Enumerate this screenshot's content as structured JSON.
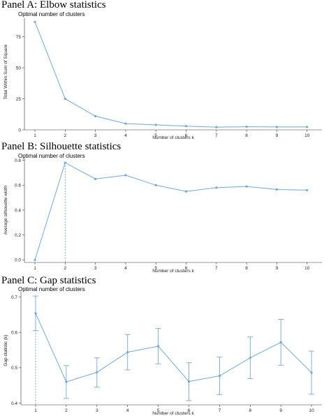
{
  "colors": {
    "series": "#6fa8dc",
    "axis": "#333333",
    "text": "#222222"
  },
  "chart_data": [
    {
      "type": "line",
      "panel_title": "Panel A: Elbow statistics",
      "title": "Optimal number of clusters",
      "xlabel": "Number of clusters k",
      "ylabel": "Total Within Sum of Square",
      "x": [
        1,
        2,
        3,
        4,
        5,
        6,
        7,
        8,
        9,
        10
      ],
      "x_ticks": [
        "1",
        "2",
        "3",
        "4",
        "5",
        "6",
        "7",
        "8",
        "9",
        "10"
      ],
      "y": [
        87,
        25,
        11,
        5,
        4,
        3,
        2.2,
        2.5,
        2.3,
        2.3
      ],
      "y_ticks": [
        0,
        25,
        50,
        75
      ],
      "y_tick_labels": [
        "0",
        "25",
        "50",
        "75"
      ],
      "ylim": [
        0,
        90
      ],
      "grid": false,
      "optimal_k": null
    },
    {
      "type": "line",
      "panel_title": "Panel B: Silhouette statistics",
      "title": "Optimal number of clusters",
      "xlabel": "Number of clusters k",
      "ylabel": "Average silhouette width",
      "x": [
        1,
        2,
        3,
        4,
        5,
        6,
        7,
        8,
        9,
        10
      ],
      "x_ticks": [
        "1",
        "2",
        "3",
        "4",
        "5",
        "6",
        "7",
        "8",
        "9",
        "10"
      ],
      "y": [
        0,
        0.78,
        0.65,
        0.68,
        0.6,
        0.55,
        0.58,
        0.59,
        0.565,
        0.56
      ],
      "y_ticks": [
        0,
        0.2,
        0.4,
        0.6,
        0.8
      ],
      "y_tick_labels": [
        "0.0",
        "0.2",
        "0.4",
        "0.6",
        "0.8"
      ],
      "ylim": [
        -0.02,
        0.82
      ],
      "grid": false,
      "optimal_k": 2
    },
    {
      "type": "line",
      "panel_title": "Panel C: Gap statistics",
      "title": "Optimal number of clusters",
      "xlabel": "Number of clusters k",
      "ylabel": "Gap statistic (k)",
      "x": [
        1,
        2,
        3,
        4,
        5,
        6,
        7,
        8,
        9,
        10
      ],
      "x_ticks": [
        "1",
        "2",
        "3",
        "4",
        "5",
        "6",
        "7",
        "8",
        "9",
        "10"
      ],
      "y": [
        0.654,
        0.46,
        0.487,
        0.544,
        0.561,
        0.461,
        0.477,
        0.528,
        0.572,
        0.486
      ],
      "err_low": [
        0.605,
        0.413,
        0.445,
        0.494,
        0.511,
        0.407,
        0.424,
        0.469,
        0.507,
        0.425
      ],
      "err_high": [
        0.703,
        0.506,
        0.528,
        0.594,
        0.611,
        0.514,
        0.53,
        0.587,
        0.637,
        0.547
      ],
      "y_ticks": [
        0.4,
        0.5,
        0.6,
        0.7
      ],
      "y_tick_labels": [
        "0.4",
        "0.5",
        "0.6",
        "0.7"
      ],
      "ylim": [
        0.395,
        0.715
      ],
      "grid": false,
      "optimal_k": 1
    }
  ]
}
